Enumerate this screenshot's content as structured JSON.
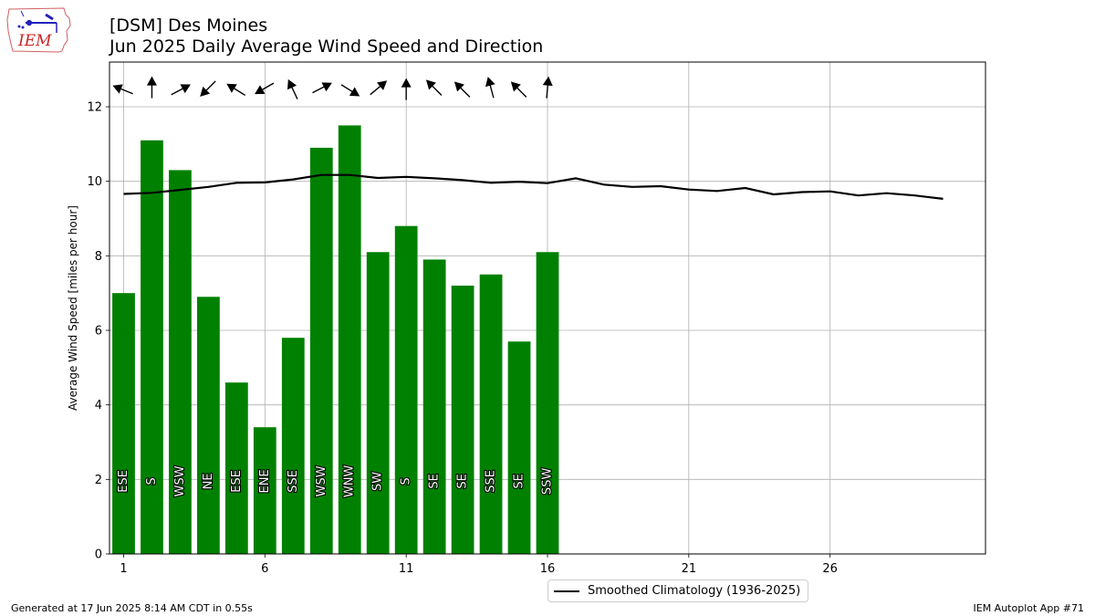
{
  "header": {
    "title_line1": "[DSM] Des Moines",
    "title_line2": "Jun 2025 Daily Average Wind Speed and Direction"
  },
  "logo": {
    "text": "IEM",
    "icon": "iowa-state-outline-with-weather-station"
  },
  "footer": {
    "generated": "Generated at 17 Jun 2025 8:14 AM CDT in 0.55s",
    "app": "IEM Autoplot App #71"
  },
  "legend": {
    "climatology_label": "Smoothed Climatology (1936-2025)"
  },
  "colors": {
    "bar": "#008000",
    "climatology_line": "#000000",
    "grid": "#b0b0b0",
    "label_text": "#ffffff"
  },
  "chart_data": {
    "type": "bar",
    "title": "[DSM] Des Moines\nJun 2025 Daily Average Wind Speed and Direction",
    "xlabel": "",
    "ylabel": "Average Wind Speed [miles per hour]",
    "xlim": [
      0.5,
      31.5
    ],
    "ylim": [
      0,
      13.2
    ],
    "xticks": [
      1,
      6,
      11,
      16,
      21,
      26
    ],
    "yticks": [
      0,
      2,
      4,
      6,
      8,
      10,
      12
    ],
    "grid": true,
    "legend_position": "below-center",
    "days": [
      1,
      2,
      3,
      4,
      5,
      6,
      7,
      8,
      9,
      10,
      11,
      12,
      13,
      14,
      15,
      16
    ],
    "speeds": [
      7.0,
      11.1,
      10.3,
      6.9,
      4.6,
      3.4,
      5.8,
      10.9,
      11.5,
      8.1,
      8.8,
      7.9,
      7.2,
      7.5,
      5.7,
      8.1
    ],
    "directions": [
      "ESE",
      "S",
      "WSW",
      "NE",
      "ESE",
      "ENE",
      "SSE",
      "WSW",
      "WNW",
      "SW",
      "S",
      "SE",
      "SE",
      "SSE",
      "SE",
      "SSW"
    ],
    "arrow_bearings_deg": [
      292,
      0,
      62,
      225,
      302,
      240,
      335,
      63,
      122,
      50,
      0,
      315,
      315,
      345,
      315,
      5
    ],
    "climatology": {
      "name": "Smoothed Climatology (1936-2025)",
      "x": [
        1,
        2,
        3,
        4,
        5,
        6,
        7,
        8,
        9,
        10,
        11,
        12,
        13,
        14,
        15,
        16,
        17,
        18,
        19,
        20,
        21,
        22,
        23,
        24,
        25,
        26,
        27,
        28,
        29,
        30
      ],
      "y": [
        9.66,
        9.69,
        9.77,
        9.85,
        9.96,
        9.97,
        10.05,
        10.17,
        10.17,
        10.09,
        10.12,
        10.08,
        10.03,
        9.96,
        9.99,
        9.95,
        10.08,
        9.91,
        9.85,
        9.87,
        9.78,
        9.74,
        9.82,
        9.65,
        9.71,
        9.73,
        9.62,
        9.68,
        9.62,
        9.53
      ]
    }
  }
}
